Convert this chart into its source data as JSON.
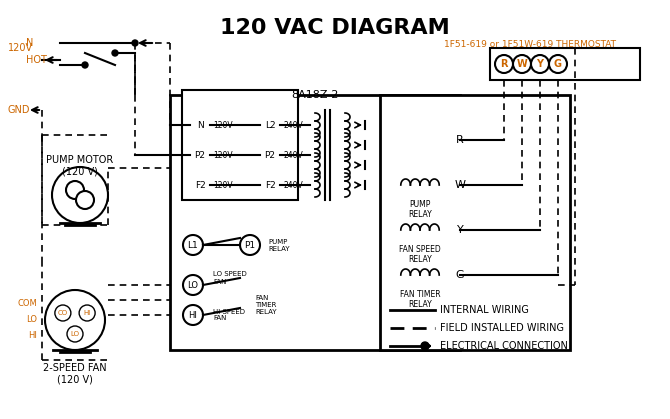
{
  "title": "120 VAC DIAGRAM",
  "title_color": "#000000",
  "title_fontsize": 16,
  "bg_color": "#ffffff",
  "orange_color": "#cc6600",
  "black_color": "#000000",
  "thermostat_label": "1F51-619 or 1F51W-619 THERMOSTAT",
  "box8A_label": "8A18Z-2",
  "legend_items": [
    {
      "label": "INTERNAL WIRING",
      "style": "solid"
    },
    {
      "label": "FIELD INSTALLED WIRING",
      "style": "dashed"
    },
    {
      "label": "ELECTRICAL CONNECTION",
      "style": "dot_arrow"
    }
  ],
  "terminal_labels": [
    "R",
    "W",
    "Y",
    "G"
  ],
  "relay_labels": [
    "PUMP\nRELAY",
    "FAN SPEED\nRELAY",
    "FAN TIMER\nRELAY"
  ],
  "relay_circles": [
    "R",
    "W",
    "Y",
    "G"
  ],
  "left_terminals_120": [
    "N",
    "P2",
    "F2"
  ],
  "left_terminals_240": [
    "L2",
    "P2",
    "F2"
  ],
  "switch_labels": [
    "L1",
    "LO",
    "HI"
  ],
  "pump_labels": [
    "P1"
  ],
  "fan_labels": [
    "LO SPEED\nFAN",
    "HI SPEED\nFAN"
  ],
  "fan_timer_label": "FAN\nTIMER\nRELAY",
  "pump_relay_label": "PUMP\nRELAY",
  "motor_label": "PUMP MOTOR\n(120 V)",
  "fan2_label": "2-SPEED FAN\n(120 V)",
  "voltage_labels": [
    "120V",
    "N",
    "HOT",
    "GND"
  ]
}
